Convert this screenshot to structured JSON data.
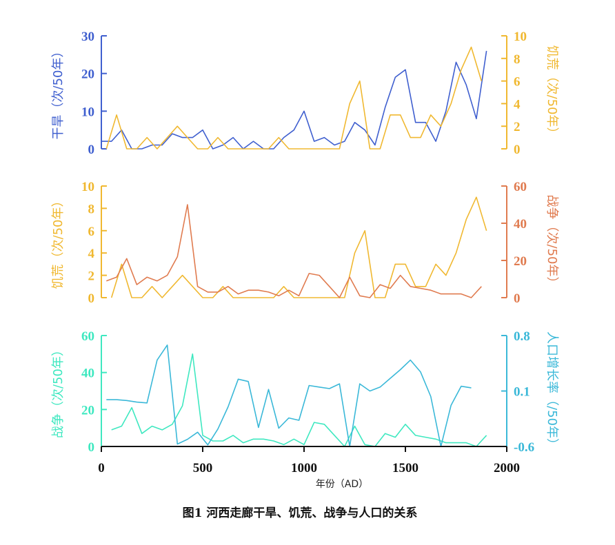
{
  "caption": "图1 河西走廊干旱、饥荒、战争与人口的关系",
  "x_axis": {
    "label": "年份（AD）",
    "ticks": [
      0,
      500,
      1000,
      1500,
      2000
    ],
    "range": [
      0,
      2000
    ]
  },
  "chart_data": [
    {
      "type": "line",
      "series": [
        {
          "name": "干旱（次/50年）",
          "color": "#3F5FCF",
          "axis": "left",
          "x": [
            0,
            50,
            100,
            150,
            200,
            250,
            300,
            350,
            400,
            450,
            500,
            550,
            600,
            650,
            700,
            750,
            800,
            850,
            900,
            950,
            1000,
            1050,
            1100,
            1150,
            1200,
            1250,
            1300,
            1350,
            1400,
            1450,
            1500,
            1550,
            1600,
            1650,
            1700,
            1750,
            1800,
            1850,
            1900,
            1950
          ],
          "values": [
            2,
            2,
            5,
            0,
            0,
            1,
            1,
            4,
            3,
            3,
            5,
            0,
            1,
            3,
            0,
            2,
            0,
            0,
            3,
            5,
            10,
            2,
            3,
            1,
            2,
            7,
            5,
            1,
            11,
            19,
            21,
            7,
            7,
            2,
            10,
            23,
            17,
            8,
            26,
            null
          ]
        },
        {
          "name": "饥荒（次/50年）",
          "color": "#F0B830",
          "axis": "right",
          "x": [
            25,
            75,
            125,
            175,
            225,
            275,
            325,
            375,
            425,
            475,
            525,
            575,
            625,
            675,
            725,
            775,
            825,
            875,
            925,
            975,
            1025,
            1075,
            1125,
            1175,
            1225,
            1275,
            1325,
            1375,
            1425,
            1475,
            1525,
            1575,
            1625,
            1675,
            1725,
            1775,
            1825,
            1875
          ],
          "values": [
            0,
            3,
            0,
            0,
            1,
            0,
            1,
            2,
            1,
            0,
            0,
            1,
            0,
            0,
            0,
            0,
            0,
            1,
            0,
            0,
            0,
            0,
            0,
            0,
            4,
            6,
            0,
            0,
            3,
            3,
            1,
            1,
            3,
            2,
            4,
            7,
            9,
            6
          ]
        }
      ],
      "left_axis": {
        "label": "干旱（次/50年）",
        "ticks": [
          0,
          10,
          20,
          30
        ],
        "range": [
          0,
          30
        ]
      },
      "right_axis": {
        "label": "饥荒（次/50年）",
        "ticks": [
          0,
          2,
          4,
          6,
          8,
          10
        ],
        "range": [
          0,
          10
        ]
      }
    },
    {
      "type": "line",
      "series": [
        {
          "name": "饥荒（次/50年）",
          "color": "#F0B830",
          "axis": "left",
          "x": [
            50,
            100,
            150,
            200,
            250,
            300,
            350,
            400,
            450,
            500,
            550,
            600,
            650,
            700,
            750,
            800,
            850,
            900,
            950,
            1000,
            1050,
            1100,
            1150,
            1200,
            1250,
            1300,
            1350,
            1400,
            1450,
            1500,
            1550,
            1600,
            1650,
            1700,
            1750,
            1800,
            1850,
            1900
          ],
          "values": [
            0,
            3,
            0,
            0,
            1,
            0,
            1,
            2,
            1,
            0,
            0,
            1,
            0,
            0,
            0,
            0,
            0,
            1,
            0,
            0,
            0,
            0,
            0,
            0,
            4,
            6,
            0,
            0,
            3,
            3,
            1,
            1,
            3,
            2,
            4,
            7,
            9,
            6
          ]
        },
        {
          "name": "战争（次/50年）",
          "color": "#E07B4F",
          "axis": "right",
          "x": [
            25,
            75,
            125,
            175,
            225,
            275,
            325,
            375,
            425,
            475,
            525,
            575,
            625,
            675,
            725,
            775,
            825,
            875,
            925,
            975,
            1025,
            1075,
            1125,
            1175,
            1225,
            1275,
            1325,
            1375,
            1425,
            1475,
            1525,
            1575,
            1625,
            1675,
            1725,
            1775,
            1825,
            1875
          ],
          "values": [
            9,
            11,
            21,
            7,
            11,
            9,
            12,
            22,
            50,
            6,
            3,
            3,
            6,
            2,
            4,
            4,
            3,
            1,
            4,
            1,
            13,
            12,
            6,
            0,
            11,
            1,
            0,
            7,
            5,
            12,
            6,
            5,
            4,
            2,
            2,
            2,
            0,
            6
          ]
        }
      ],
      "left_axis": {
        "label": "饥荒（次/50年）",
        "ticks": [
          0,
          2,
          4,
          6,
          8,
          10
        ],
        "range": [
          0,
          10
        ]
      },
      "right_axis": {
        "label": "战争（次/50年）",
        "ticks": [
          0,
          20,
          40,
          60
        ],
        "range": [
          0,
          60
        ]
      }
    },
    {
      "type": "line",
      "series": [
        {
          "name": "战争（次/50年）",
          "color": "#3EE8C0",
          "axis": "left",
          "x": [
            50,
            100,
            150,
            200,
            250,
            300,
            350,
            400,
            450,
            500,
            550,
            600,
            650,
            700,
            750,
            800,
            850,
            900,
            950,
            1000,
            1050,
            1100,
            1150,
            1200,
            1250,
            1300,
            1350,
            1400,
            1450,
            1500,
            1550,
            1600,
            1650,
            1700,
            1750,
            1800,
            1850,
            1900
          ],
          "values": [
            9,
            11,
            21,
            7,
            11,
            9,
            12,
            22,
            50,
            6,
            3,
            3,
            6,
            2,
            4,
            4,
            3,
            1,
            4,
            1,
            13,
            12,
            6,
            0,
            11,
            1,
            0,
            7,
            5,
            12,
            6,
            5,
            4,
            2,
            2,
            2,
            0,
            6
          ]
        },
        {
          "name": "人口增长率（/50年）",
          "color": "#3AB8D8",
          "axis": "right",
          "x": [
            25,
            75,
            125,
            175,
            225,
            275,
            325,
            375,
            425,
            475,
            525,
            575,
            625,
            675,
            725,
            775,
            825,
            875,
            925,
            975,
            1025,
            1075,
            1125,
            1175,
            1225,
            1275,
            1325,
            1375,
            1425,
            1475,
            1525,
            1575,
            1625,
            1675,
            1725,
            1775,
            1825
          ],
          "values": [
            -0.01,
            -0.01,
            -0.02,
            -0.04,
            -0.05,
            0.49,
            0.68,
            -0.57,
            -0.51,
            -0.42,
            -0.58,
            -0.38,
            -0.1,
            0.25,
            0.22,
            -0.36,
            0.12,
            -0.37,
            -0.24,
            -0.27,
            0.17,
            0.15,
            0.13,
            0.19,
            -0.6,
            0.19,
            0.1,
            0.15,
            0.26,
            0.37,
            0.49,
            0.34,
            0.03,
            -0.6,
            -0.08,
            0.16,
            0.14
          ]
        }
      ],
      "left_axis": {
        "label": "战争（次/50年）",
        "ticks": [
          0,
          20,
          40,
          60
        ],
        "range": [
          0,
          60
        ]
      },
      "right_axis": {
        "label": "人口增长率（/50年）",
        "ticks": [
          -0.6,
          0.1,
          0.8
        ],
        "range": [
          -0.6,
          0.8
        ]
      }
    }
  ]
}
